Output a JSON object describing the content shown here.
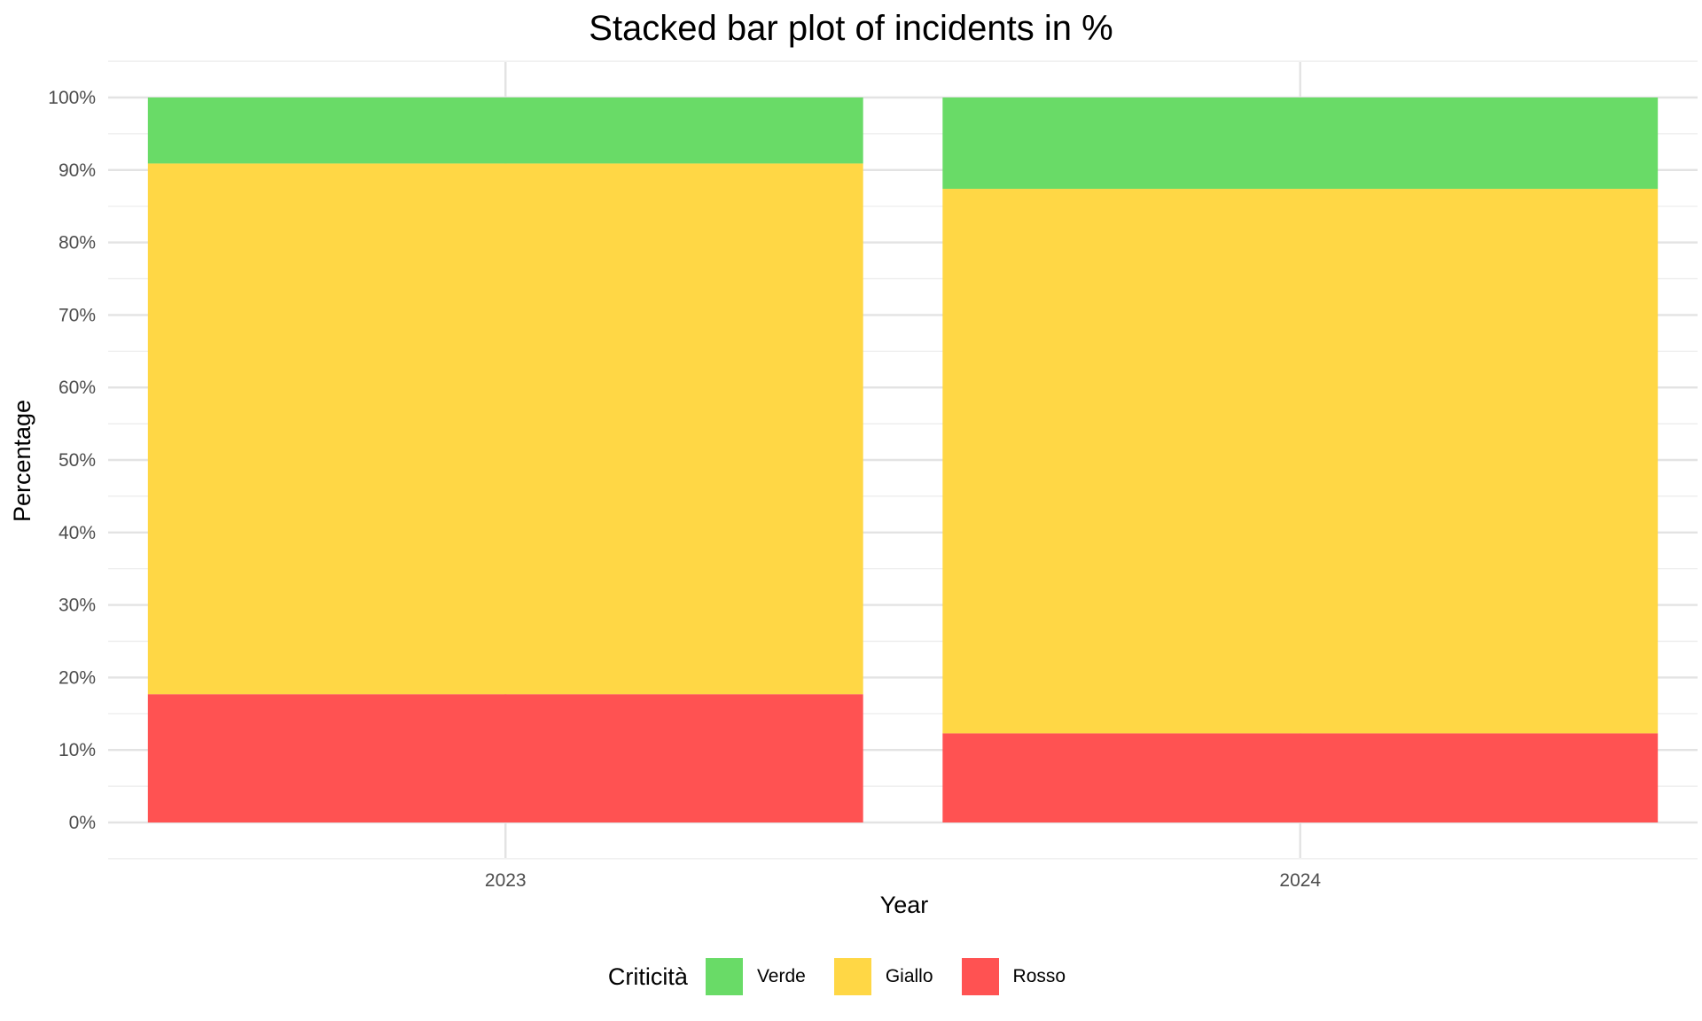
{
  "chart_data": {
    "type": "bar",
    "stacked": true,
    "title": "Stacked bar plot of incidents in %",
    "xlabel": "Year",
    "ylabel": "Percentage",
    "categories": [
      "2023",
      "2024"
    ],
    "ylim": [
      0,
      100
    ],
    "yticks": [
      "0%",
      "10%",
      "20%",
      "30%",
      "40%",
      "50%",
      "60%",
      "70%",
      "80%",
      "90%",
      "100%"
    ],
    "legend_title": "Criticità",
    "legend_position": "bottom",
    "grid": true,
    "series": [
      {
        "name": "Rosso",
        "color": "#ff5252",
        "values": [
          17.7,
          12.3
        ]
      },
      {
        "name": "Giallo",
        "color": "#ffd745",
        "values": [
          73.2,
          75.1
        ]
      },
      {
        "name": "Verde",
        "color": "#69db67",
        "values": [
          9.1,
          12.6
        ]
      }
    ],
    "legend_order": [
      "Verde",
      "Giallo",
      "Rosso"
    ]
  }
}
